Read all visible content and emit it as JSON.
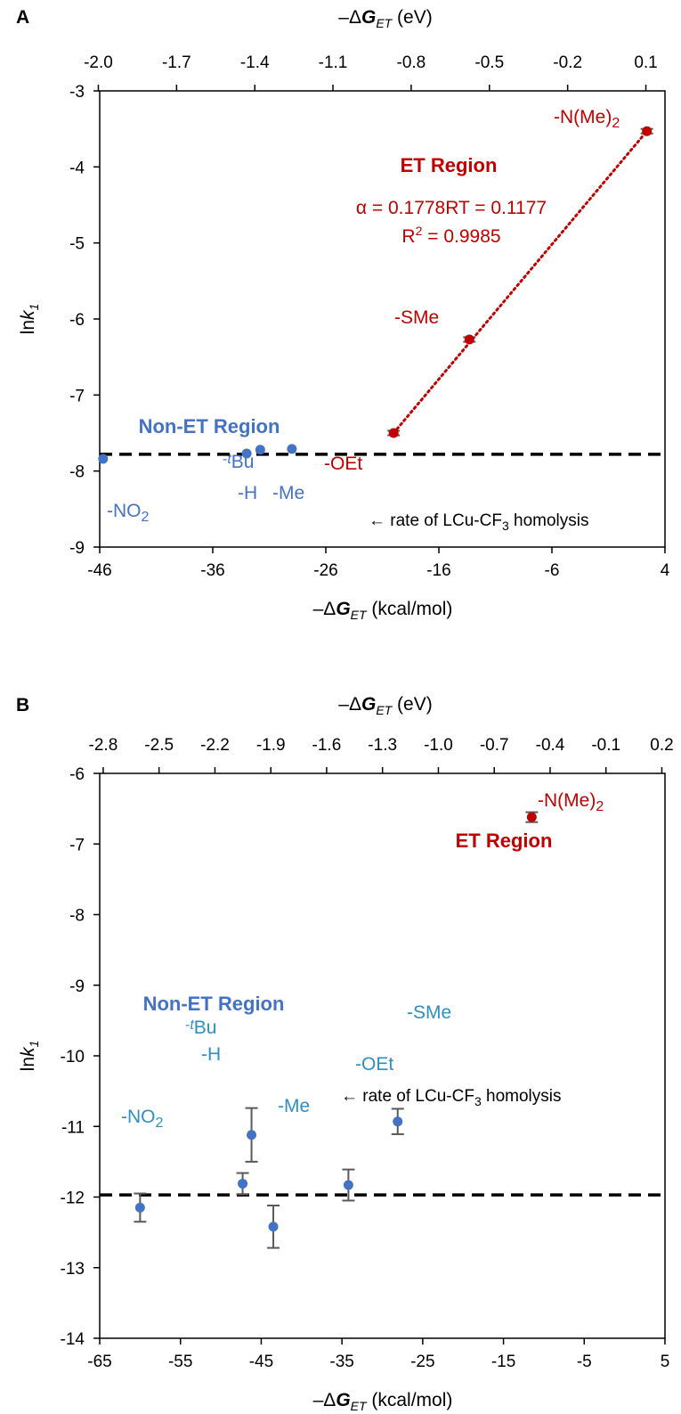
{
  "chart_data": [
    {
      "type": "scatter",
      "panel_label": "A",
      "top_axis_label": {
        "pre": "–Δ",
        "G": "G",
        "sub": "ET",
        "post": " (eV)"
      },
      "bottom_axis_label": {
        "pre": "–Δ",
        "G": "G",
        "sub": "ET",
        "post": " (kcal/mol)"
      },
      "ylabel": {
        "pre": "ln",
        "k": "k",
        "sub": "1"
      },
      "xlim": [
        -46,
        4
      ],
      "ylim": [
        -9,
        -3
      ],
      "x_ticks": [
        "-46",
        "-36",
        "-26",
        "-16",
        "-6",
        "4"
      ],
      "y_ticks": [
        "-3",
        "-4",
        "-5",
        "-6",
        "-7",
        "-8",
        "-9"
      ],
      "top_ticks": [
        "-2.0",
        "-1.7",
        "-1.4",
        "-1.1",
        "-0.8",
        "-0.5",
        "-0.2",
        "0.1"
      ],
      "top_ticks_kcal": [
        -46.12,
        -39.2,
        -32.28,
        -25.37,
        -18.45,
        -11.53,
        -4.61,
        2.31
      ],
      "reference_line": {
        "y": -7.78,
        "label": "← rate of LCu-CF",
        "label_sub": "3",
        "label_post": " homolysis"
      },
      "points": [
        {
          "name": "-NO2",
          "x": -45.7,
          "y": -7.84,
          "err": 0,
          "color": "#4472c4"
        },
        {
          "name": "-H",
          "x": -33.0,
          "y": -7.77,
          "err": 0,
          "color": "#4472c4"
        },
        {
          "name": "-tBu",
          "x": -31.8,
          "y": -7.72,
          "err": 0,
          "color": "#4472c4"
        },
        {
          "name": "-Me",
          "x": -29.0,
          "y": -7.71,
          "err": 0,
          "color": "#4472c4"
        },
        {
          "name": "-OEt",
          "x": -20.0,
          "y": -7.5,
          "err": 0.03,
          "color": "#c00000"
        },
        {
          "name": "-SMe",
          "x": -13.3,
          "y": -6.27,
          "err": 0.03,
          "color": "#c00000"
        },
        {
          "name": "-N(Me)2",
          "x": 2.4,
          "y": -3.53,
          "err": 0.03,
          "color": "#c00000"
        }
      ],
      "trendline": {
        "x": [
          -20.0,
          2.4
        ],
        "y": [
          -7.5,
          -3.53
        ],
        "color": "#c00000"
      },
      "annotations": {
        "et_region": "ET Region",
        "non_et_region": "Non-ET Region",
        "alpha": "α = 0.1778RT = 0.1177",
        "r2_pre": "R",
        "r2_sup": "2",
        "r2_post": " = 0.9985"
      },
      "point_labels": {
        "NO2": {
          "pre": "-NO",
          "sub": "2"
        },
        "H": "-H",
        "tBu": {
          "pre": "-",
          "t": "t",
          "post": "Bu"
        },
        "Me": "-Me",
        "OEt": "-OEt",
        "SMe": "-SMe",
        "NMe2": {
          "pre": "-N(Me)",
          "sub": "2"
        }
      }
    },
    {
      "type": "scatter",
      "panel_label": "B",
      "top_axis_label": {
        "pre": "–Δ",
        "G": "G",
        "sub": "ET",
        "post": " (eV)"
      },
      "bottom_axis_label": {
        "pre": "–Δ",
        "G": "G",
        "sub": "ET",
        "post": " (kcal/mol)"
      },
      "ylabel": {
        "pre": "ln",
        "k": "k",
        "sub": "1"
      },
      "xlim": [
        -65,
        5
      ],
      "ylim": [
        -14,
        -6
      ],
      "x_ticks": [
        "-65",
        "-55",
        "-45",
        "-35",
        "-25",
        "-15",
        "-5",
        "5"
      ],
      "y_ticks": [
        "-6",
        "-7",
        "-8",
        "-9",
        "-10",
        "-11",
        "-12",
        "-13",
        "-14"
      ],
      "top_ticks": [
        "-2.8",
        "-2.5",
        "-2.2",
        "-1.9",
        "-1.6",
        "-1.3",
        "-1.0",
        "-0.7",
        "-0.4",
        "-0.1",
        "0.2"
      ],
      "top_ticks_kcal": [
        -64.57,
        -57.65,
        -50.73,
        -43.81,
        -36.9,
        -29.98,
        -23.06,
        -16.14,
        -9.22,
        -2.31,
        4.61
      ],
      "reference_line": {
        "y": -11.97,
        "label": "← rate of LCu-CF",
        "label_sub": "3",
        "label_post": " homolysis"
      },
      "points": [
        {
          "name": "-NO2",
          "x": -60.0,
          "y": -12.15,
          "err": 0.2,
          "color": "#4472c4"
        },
        {
          "name": "-H",
          "x": -47.3,
          "y": -11.81,
          "err": 0.15,
          "color": "#4472c4"
        },
        {
          "name": "-tBu",
          "x": -46.2,
          "y": -11.12,
          "err": 0.38,
          "color": "#4472c4"
        },
        {
          "name": "-Me",
          "x": -43.5,
          "y": -12.42,
          "err": 0.3,
          "color": "#4472c4"
        },
        {
          "name": "-OEt",
          "x": -34.2,
          "y": -11.83,
          "err": 0.22,
          "color": "#4472c4"
        },
        {
          "name": "-SMe",
          "x": -28.1,
          "y": -10.93,
          "err": 0.18,
          "color": "#4472c4"
        },
        {
          "name": "-N(Me)2",
          "x": -11.5,
          "y": -6.62,
          "err": 0.07,
          "color": "#c00000"
        }
      ],
      "annotations": {
        "et_region": "ET Region",
        "non_et_region": "Non-ET Region"
      },
      "point_labels": {
        "NO2": {
          "pre": "-NO",
          "sub": "2"
        },
        "H": "-H",
        "tBu": {
          "pre": "-",
          "t": "t",
          "post": "Bu"
        },
        "Me": "-Me",
        "OEt": "-OEt",
        "SMe": "-SMe",
        "NMe2": {
          "pre": "-N(Me)",
          "sub": "2"
        }
      }
    }
  ],
  "colors": {
    "non_et": "#4472c4",
    "et": "#c00000",
    "label_blue": "#2f8fc0",
    "axis": "#000000",
    "errorbar": "#595959"
  }
}
